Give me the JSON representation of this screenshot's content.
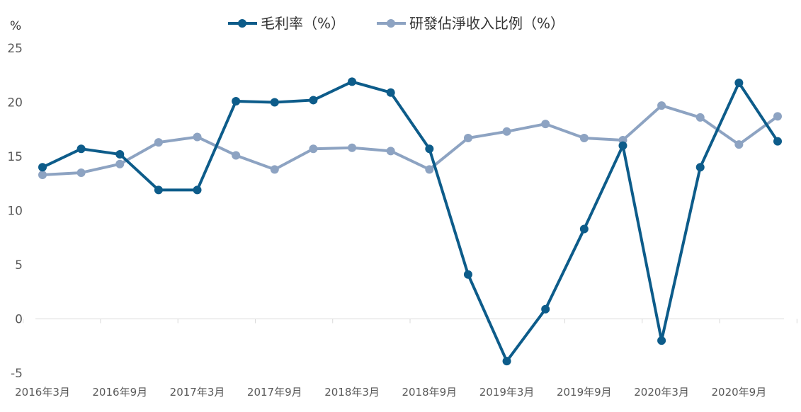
{
  "chart_data": {
    "type": "line",
    "unit_label": "%",
    "legend_position": "top-center",
    "grid": false,
    "ylim": [
      -5,
      25
    ],
    "yticks": [
      -5,
      0,
      5,
      10,
      15,
      20,
      25
    ],
    "x": [
      "2016年3月",
      "2016年6月",
      "2016年9月",
      "2016年12月",
      "2017年3月",
      "2017年6月",
      "2017年9月",
      "2017年12月",
      "2018年3月",
      "2018年6月",
      "2018年9月",
      "2018年12月",
      "2019年3月",
      "2019年6月",
      "2019年9月",
      "2019年12月",
      "2020年3月",
      "2020年6月",
      "2020年9月",
      "2020年12月"
    ],
    "xtick_labels": [
      "2016年3月",
      "2016年9月",
      "2017年3月",
      "2017年9月",
      "2018年3月",
      "2018年9月",
      "2019年3月",
      "2019年9月",
      "2020年3月",
      "2020年9月"
    ],
    "series": [
      {
        "name": "毛利率（%）",
        "color": "#0d5c8a",
        "values": [
          14.0,
          15.7,
          15.2,
          11.9,
          11.9,
          20.1,
          20.0,
          20.2,
          21.9,
          20.9,
          15.7,
          4.1,
          -3.9,
          0.9,
          8.3,
          16.0,
          -2.0,
          14.0,
          21.8,
          16.4
        ]
      },
      {
        "name": "研發佔淨收入比例（%）",
        "color": "#8da3c2",
        "values": [
          13.3,
          13.5,
          14.3,
          16.3,
          16.8,
          15.1,
          13.8,
          15.7,
          15.8,
          15.5,
          13.8,
          16.7,
          17.3,
          18.0,
          16.7,
          16.5,
          19.7,
          18.6,
          16.1,
          18.7
        ]
      }
    ]
  }
}
